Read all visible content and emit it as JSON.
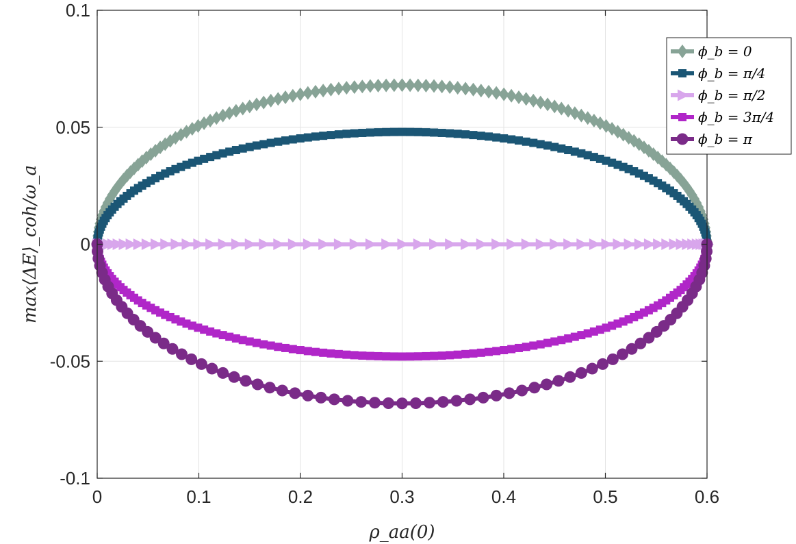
{
  "chart_data": {
    "type": "line",
    "xlabel": "ρ_aa(0)",
    "ylabel": "max⟨ΔE⟩_coh/ω_a",
    "xlim": [
      0,
      0.6
    ],
    "ylim": [
      -0.1,
      0.1
    ],
    "xticks": [
      0,
      0.1,
      0.2,
      0.3,
      0.4,
      0.5,
      0.6
    ],
    "xtick_labels": [
      "0",
      "0.1",
      "0.2",
      "0.3",
      "0.4",
      "0.5",
      "0.6"
    ],
    "yticks": [
      -0.1,
      -0.05,
      0,
      0.05,
      0.1
    ],
    "ytick_labels": [
      "-0.1",
      "-0.05",
      "0",
      "0.05",
      "0.1"
    ],
    "grid": true,
    "legend_position": "top-right",
    "series_formula": "y = A * sqrt(x*(0.6-x))/0.3",
    "series": [
      {
        "name": "ϕ_b = 0",
        "color": "#87A396",
        "marker": "diamond",
        "amplitude": 0.068,
        "marker_count": 120
      },
      {
        "name": "ϕ_b = π/4",
        "color": "#1B5675",
        "marker": "square",
        "amplitude": 0.048,
        "marker_count": 120
      },
      {
        "name": "ϕ_b = π/2",
        "color": "#D8A6EC",
        "marker": "triangle-right",
        "amplitude": 0.0,
        "marker_count": 60
      },
      {
        "name": "ϕ_b = 3π/4",
        "color": "#B026C8",
        "marker": "square",
        "amplitude": -0.048,
        "marker_count": 120
      },
      {
        "name": "ϕ_b = π",
        "color": "#7A2B88",
        "marker": "circle",
        "amplitude": -0.068,
        "marker_count": 70
      }
    ]
  }
}
